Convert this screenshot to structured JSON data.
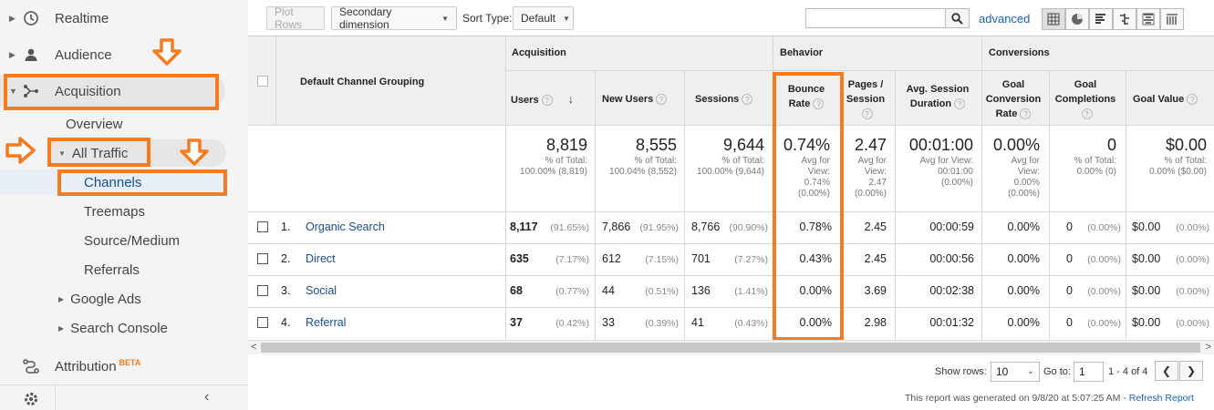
{
  "sidebar": {
    "realtime": "Realtime",
    "audience": "Audience",
    "acquisition": "Acquisition",
    "overview": "Overview",
    "all_traffic": "All Traffic",
    "channels": "Channels",
    "treemaps": "Treemaps",
    "source_medium": "Source/Medium",
    "referrals": "Referrals",
    "google_ads": "Google Ads",
    "search_console": "Search Console",
    "attribution": "Attribution",
    "attribution_badge": "BETA"
  },
  "toolbar": {
    "plot_rows": "Plot Rows",
    "secondary_dimension": "Secondary dimension",
    "sort_type_label": "Sort Type:",
    "sort_type_value": "Default",
    "search_placeholder": "",
    "advanced": "advanced"
  },
  "table": {
    "groups": {
      "acquisition": "Acquisition",
      "behavior": "Behavior",
      "conversions": "Conversions"
    },
    "dimension_header": "Default Channel Grouping",
    "columns": {
      "users": "Users",
      "new_users": "New Users",
      "sessions": "Sessions",
      "bounce_rate_1": "Bounce",
      "bounce_rate_2": "Rate",
      "pages_session_1": "Pages /",
      "pages_session_2": "Session",
      "avg_session_1": "Avg. Session",
      "avg_session_2": "Duration",
      "goal_conv_1": "Goal",
      "goal_conv_2": "Conversion",
      "goal_conv_3": "Rate",
      "goal_comp_1": "Goal",
      "goal_comp_2": "Completions",
      "goal_value": "Goal Value"
    },
    "totals": {
      "users": {
        "value": "8,819",
        "l1": "% of Total:",
        "l2": "100.00% (8,819)"
      },
      "new_users": {
        "value": "8,555",
        "l1": "% of Total:",
        "l2": "100.04% (8,552)"
      },
      "sessions": {
        "value": "9,644",
        "l1": "% of Total:",
        "l2": "100.00% (9,644)"
      },
      "bounce_rate": {
        "value": "0.74%",
        "l1": "Avg for",
        "l2": "View:",
        "l3": "0.74%",
        "l4": "(0.00%)"
      },
      "pages_session": {
        "value": "2.47",
        "l1": "Avg for",
        "l2": "View:",
        "l3": "2.47",
        "l4": "(0.00%)"
      },
      "avg_session": {
        "value": "00:01:00",
        "l1": "Avg for View:",
        "l2": "00:01:00",
        "l3": "(0.00%)"
      },
      "goal_conv": {
        "value": "0.00%",
        "l1": "Avg for",
        "l2": "View:",
        "l3": "0.00%",
        "l4": "(0.00%)"
      },
      "goal_comp": {
        "value": "0",
        "l1": "% of Total:",
        "l2": "0.00% (0)"
      },
      "goal_value": {
        "value": "$0.00",
        "l1": "% of Total:",
        "l2": "0.00% ($0.00)"
      }
    },
    "rows": [
      {
        "idx": "1.",
        "channel": "Organic Search",
        "users": "8,117",
        "users_pct": "(91.65%)",
        "new_users": "7,866",
        "new_users_pct": "(91.95%)",
        "sessions": "8,766",
        "sessions_pct": "(90.90%)",
        "bounce": "0.78%",
        "pages": "2.45",
        "duration": "00:00:59",
        "conv": "0.00%",
        "comp": "0",
        "comp_pct": "(0.00%)",
        "value": "$0.00",
        "value_pct": "(0.00%)"
      },
      {
        "idx": "2.",
        "channel": "Direct",
        "users": "635",
        "users_pct": "(7.17%)",
        "new_users": "612",
        "new_users_pct": "(7.15%)",
        "sessions": "701",
        "sessions_pct": "(7.27%)",
        "bounce": "0.43%",
        "pages": "2.45",
        "duration": "00:00:56",
        "conv": "0.00%",
        "comp": "0",
        "comp_pct": "(0.00%)",
        "value": "$0.00",
        "value_pct": "(0.00%)"
      },
      {
        "idx": "3.",
        "channel": "Social",
        "users": "68",
        "users_pct": "(0.77%)",
        "new_users": "44",
        "new_users_pct": "(0.51%)",
        "sessions": "136",
        "sessions_pct": "(1.41%)",
        "bounce": "0.00%",
        "pages": "3.69",
        "duration": "00:02:38",
        "conv": "0.00%",
        "comp": "0",
        "comp_pct": "(0.00%)",
        "value": "$0.00",
        "value_pct": "(0.00%)"
      },
      {
        "idx": "4.",
        "channel": "Referral",
        "users": "37",
        "users_pct": "(0.42%)",
        "new_users": "33",
        "new_users_pct": "(0.39%)",
        "sessions": "41",
        "sessions_pct": "(0.43%)",
        "bounce": "0.00%",
        "pages": "2.98",
        "duration": "00:01:32",
        "conv": "0.00%",
        "comp": "0",
        "comp_pct": "(0.00%)",
        "value": "$0.00",
        "value_pct": "(0.00%)"
      }
    ]
  },
  "footer": {
    "show_rows_label": "Show rows:",
    "show_rows_value": "10",
    "goto_label": "Go to:",
    "goto_value": "1",
    "range": "1 - 4 of 4",
    "generated": "This report was generated on 9/8/20 at 5:07:25 AM -",
    "refresh": "Refresh Report"
  },
  "colors": {
    "highlight": "#f47b20",
    "link": "#1a4d8c",
    "header_bg": "#efefef"
  }
}
